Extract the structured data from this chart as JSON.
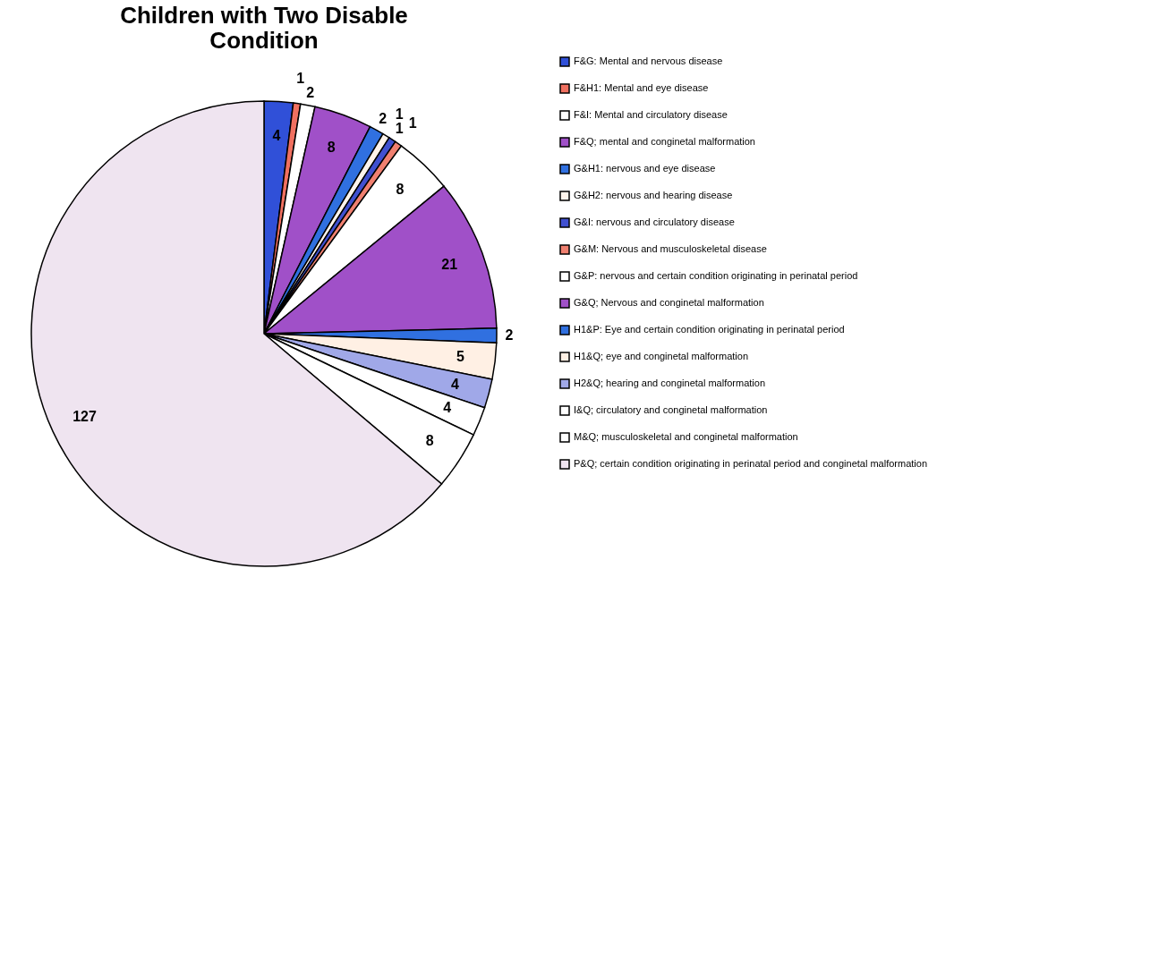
{
  "chart_data": {
    "type": "pie",
    "title": "Children with Two Disable\nCondition",
    "categories": [
      "F&G: Mental and nervous disease",
      "F&H1: Mental and eye disease",
      "F&I: Mental and circulatory disease",
      "F&Q; mental and conginetal malformation",
      "G&H1: nervous and eye disease",
      "G&H2: nervous and hearing disease",
      "G&I: nervous and circulatory disease",
      "G&M: Nervous and musculoskeletal disease",
      "G&P: nervous and certain condition originating in perinatal period",
      "G&Q; Nervous and conginetal malformation",
      "H1&P: Eye and certain condition originating in perinatal period",
      "H1&Q; eye and conginetal malformation",
      "H2&Q; hearing and conginetal malformation",
      "I&Q; circulatory and conginetal malformation",
      "M&Q; musculoskeletal and conginetal malformation",
      "P&Q; certain condition originating in perinatal period and conginetal malformation"
    ],
    "values": [
      4,
      1,
      2,
      8,
      2,
      1,
      1,
      1,
      8,
      21,
      2,
      5,
      4,
      4,
      8,
      127
    ],
    "colors": [
      "#3050d8",
      "#f07060",
      "#ffffff",
      "#a050c8",
      "#3070e0",
      "#fff4ec",
      "#4050d0",
      "#f08070",
      "#ffffff",
      "#a050c8",
      "#3070e0",
      "#fff0e4",
      "#a0a8e8",
      "#ffffff",
      "#ffffff",
      "#efe4f0"
    ],
    "data_labels": true,
    "legend": "right"
  }
}
